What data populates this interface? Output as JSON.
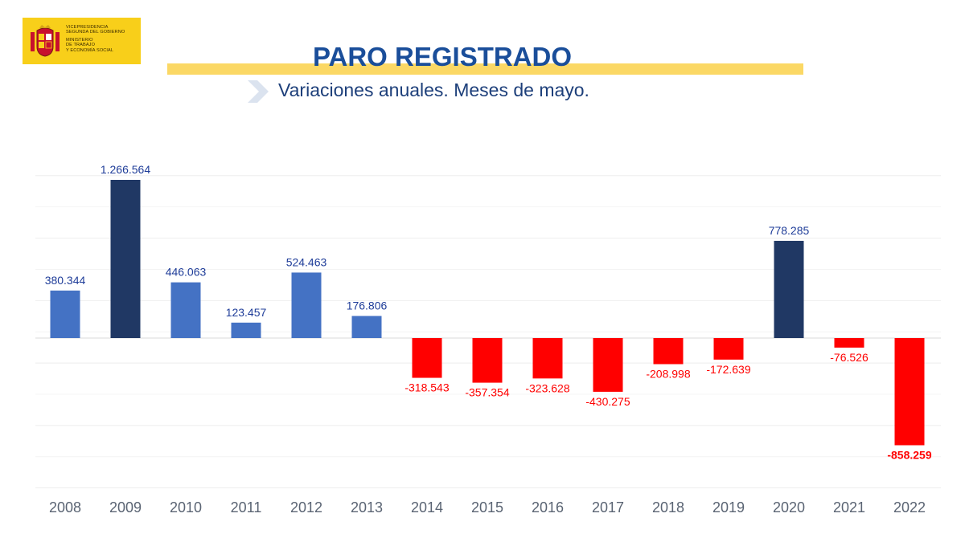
{
  "logo": {
    "line1": "VICEPRESIDENCIA",
    "line2": "SEGUNDA DEL GOBIERNO",
    "line3": "MINISTERIO",
    "line4": "DE TRABAJO",
    "line5": "Y ECONOMÍA SOCIAL"
  },
  "header": {
    "title": "PARO REGISTRADO",
    "subtitle": "Variaciones anuales. Meses de mayo."
  },
  "colors": {
    "positive": "#4472c4",
    "highlight": "#203864",
    "negative": "#ff0000",
    "positive_label": "#1f3d99",
    "negative_label": "#ff0000",
    "grid": "#eeeeee",
    "axis_label": "#5a6473"
  },
  "chart_data": {
    "type": "bar",
    "title": "PARO REGISTRADO",
    "subtitle": "Variaciones anuales. Meses de mayo.",
    "categories": [
      "2008",
      "2009",
      "2010",
      "2011",
      "2012",
      "2013",
      "2014",
      "2015",
      "2016",
      "2017",
      "2018",
      "2019",
      "2020",
      "2021",
      "2022"
    ],
    "values": [
      380344,
      1266564,
      446063,
      123457,
      524463,
      176806,
      -318543,
      -357354,
      -323628,
      -430275,
      -208998,
      -172639,
      778285,
      -76526,
      -858259
    ],
    "labels": [
      "380.344",
      "1.266.564",
      "446.063",
      "123.457",
      "524.463",
      "176.806",
      "-318.543",
      "-357.354",
      "-323.628",
      "-430.275",
      "-208.998",
      "-172.639",
      "778.285",
      "-76.526",
      "-858.259"
    ],
    "highlighted": [
      "2009",
      "2020"
    ],
    "bold_labels": [
      "2022"
    ],
    "ylim": [
      -1200000,
      1300000
    ],
    "gridline_step": 500000,
    "grid": true,
    "legend": "none",
    "xlabel": "",
    "ylabel": ""
  }
}
